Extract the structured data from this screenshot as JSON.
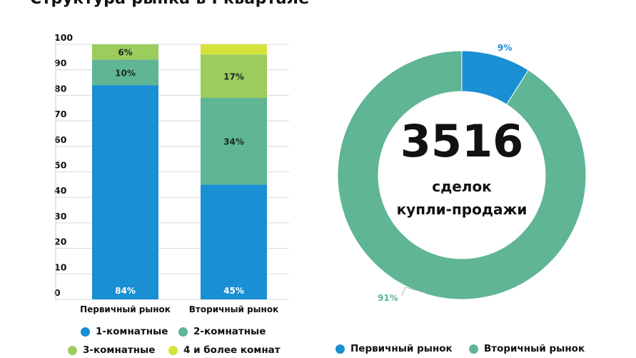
{
  "title": "Структура рынка в I квартале",
  "colors": {
    "c1": "#1a8fd3",
    "c2": "#5fb594",
    "c3": "#9ccc5e",
    "c4": "#d5e23a",
    "primary": "#1a8fd3",
    "secondary": "#5fb594"
  },
  "chart_data": [
    {
      "type": "bar",
      "stacked": true,
      "categories": [
        "Первичный рынок",
        "Вторичный рынок"
      ],
      "series": [
        {
          "name": "1-комнатные",
          "values": [
            84,
            45
          ],
          "labels": [
            "84%",
            "45%"
          ]
        },
        {
          "name": "2-комнатные",
          "values": [
            10,
            34
          ],
          "labels": [
            "10%",
            "34%"
          ]
        },
        {
          "name": "3-комнатные",
          "values": [
            6,
            17
          ],
          "labels": [
            "6%",
            "17%"
          ]
        },
        {
          "name": "4 и более комнат",
          "values": [
            0,
            4
          ],
          "labels": [
            "",
            ""
          ]
        }
      ],
      "yticks": [
        "0",
        "10",
        "20",
        "30",
        "40",
        "50",
        "60",
        "70",
        "80",
        "90",
        "100"
      ],
      "ylim": [
        0,
        100
      ],
      "grid": true,
      "legend": "bottom"
    },
    {
      "type": "pie",
      "donut": true,
      "slices": [
        {
          "name": "Первичный рынок",
          "value": 9,
          "label": "9%"
        },
        {
          "name": "Вторичный рынок",
          "value": 91,
          "label": "91%"
        }
      ],
      "center": {
        "number": "3516",
        "line1": "сделок",
        "line2": "купли-продажи"
      },
      "legend": "bottom"
    }
  ]
}
